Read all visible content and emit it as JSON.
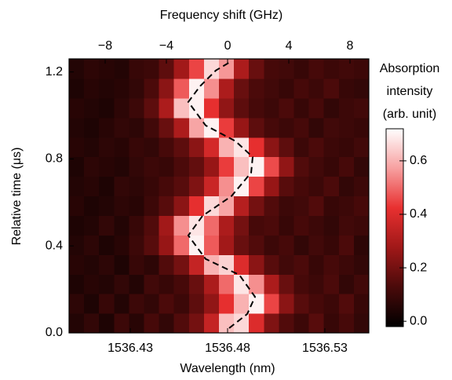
{
  "chart_data": {
    "type": "heatmap",
    "title": "Frequency shift  (GHz)",
    "x_label": "Wavelength (nm)",
    "y_label": "Relative time (μs)",
    "colorbar_label": [
      "Absorption",
      "intensity",
      "(arb. unit)"
    ],
    "xlim": [
      1536.3985,
      1536.5526
    ],
    "xticks": [
      1536.43,
      1536.48,
      1536.53
    ],
    "x2lim": [
      -10.36,
      9.23
    ],
    "x2ticks": [
      {
        "value": -8,
        "label": "−8"
      },
      {
        "value": -4,
        "label": "−4"
      },
      0,
      4,
      8
    ],
    "ylim": [
      0,
      1.26
    ],
    "yticks": [
      {
        "value": 0,
        "label": "0.0"
      },
      0.4,
      0.8,
      1.2
    ],
    "zlim": [
      -0.02,
      0.72
    ],
    "zticks": [
      {
        "value": 0,
        "label": "0.0"
      },
      0.2,
      0.4,
      0.6
    ],
    "colorscale": [
      "#000000",
      "#4a0a0a",
      "#a01818",
      "#e83030",
      "#f7a0a0",
      "#ffffff"
    ],
    "z": [
      [
        0.05,
        0.08,
        0.04,
        0.1,
        0.06,
        0.12,
        0.08,
        0.14,
        0.2,
        0.35,
        0.62,
        0.66,
        0.4,
        0.22,
        0.14,
        0.1,
        0.15,
        0.09,
        0.12,
        0.08
      ],
      [
        0.07,
        0.04,
        0.09,
        0.05,
        0.1,
        0.08,
        0.13,
        0.1,
        0.16,
        0.25,
        0.42,
        0.6,
        0.7,
        0.45,
        0.24,
        0.15,
        0.12,
        0.1,
        0.14,
        0.09
      ],
      [
        0.04,
        0.06,
        0.05,
        0.08,
        0.05,
        0.11,
        0.09,
        0.12,
        0.18,
        0.3,
        0.5,
        0.68,
        0.55,
        0.3,
        0.18,
        0.12,
        0.1,
        0.13,
        0.08,
        0.11
      ],
      [
        0.06,
        0.05,
        0.07,
        0.04,
        0.09,
        0.07,
        0.14,
        0.2,
        0.35,
        0.6,
        0.65,
        0.4,
        0.24,
        0.15,
        0.11,
        0.13,
        0.09,
        0.12,
        0.1,
        0.08
      ],
      [
        0.05,
        0.07,
        0.04,
        0.06,
        0.1,
        0.15,
        0.26,
        0.5,
        0.7,
        0.48,
        0.28,
        0.18,
        0.14,
        0.1,
        0.12,
        0.08,
        0.11,
        0.09,
        0.13,
        0.07
      ],
      [
        0.04,
        0.05,
        0.08,
        0.05,
        0.09,
        0.14,
        0.28,
        0.55,
        0.68,
        0.5,
        0.3,
        0.2,
        0.12,
        0.13,
        0.09,
        0.12,
        0.1,
        0.08,
        0.11,
        0.1
      ],
      [
        0.06,
        0.04,
        0.05,
        0.07,
        0.06,
        0.1,
        0.15,
        0.24,
        0.42,
        0.66,
        0.58,
        0.32,
        0.2,
        0.14,
        0.1,
        0.11,
        0.14,
        0.09,
        0.1,
        0.12
      ],
      [
        0.05,
        0.06,
        0.04,
        0.08,
        0.07,
        0.09,
        0.12,
        0.15,
        0.22,
        0.36,
        0.55,
        0.7,
        0.45,
        0.26,
        0.15,
        0.12,
        0.1,
        0.13,
        0.08,
        0.1
      ],
      [
        0.04,
        0.07,
        0.06,
        0.05,
        0.08,
        0.1,
        0.09,
        0.13,
        0.17,
        0.26,
        0.44,
        0.62,
        0.7,
        0.46,
        0.25,
        0.14,
        0.11,
        0.09,
        0.12,
        0.08
      ],
      [
        0.06,
        0.05,
        0.07,
        0.06,
        0.09,
        0.08,
        0.12,
        0.16,
        0.24,
        0.38,
        0.6,
        0.68,
        0.42,
        0.24,
        0.16,
        0.1,
        0.13,
        0.1,
        0.09,
        0.11
      ],
      [
        0.05,
        0.04,
        0.06,
        0.08,
        0.07,
        0.11,
        0.18,
        0.3,
        0.58,
        0.7,
        0.44,
        0.26,
        0.16,
        0.12,
        0.1,
        0.12,
        0.08,
        0.11,
        0.1,
        0.09
      ],
      [
        0.06,
        0.05,
        0.04,
        0.07,
        0.1,
        0.16,
        0.3,
        0.62,
        0.7,
        0.42,
        0.25,
        0.16,
        0.12,
        0.1,
        0.13,
        0.09,
        0.12,
        0.08,
        0.1,
        0.11
      ],
      [
        0.04,
        0.06,
        0.05,
        0.06,
        0.08,
        0.13,
        0.24,
        0.48,
        0.7,
        0.55,
        0.3,
        0.18,
        0.13,
        0.11,
        0.09,
        0.12,
        0.1,
        0.13,
        0.09,
        0.08
      ],
      [
        0.05,
        0.07,
        0.06,
        0.05,
        0.09,
        0.1,
        0.16,
        0.28,
        0.45,
        0.66,
        0.56,
        0.3,
        0.18,
        0.12,
        0.11,
        0.09,
        0.12,
        0.1,
        0.11,
        0.1
      ]
    ],
    "series": [
      {
        "color": "#000000",
        "x": [
          1536.4808,
          1536.4901,
          1536.4941,
          1536.486,
          1536.4687,
          1536.4598,
          1536.4671,
          1536.482,
          1536.4921,
          1536.4929,
          1536.484,
          1536.4687,
          1536.4598,
          1536.4659,
          1536.474,
          1536.4808
        ],
        "values": [
          0.022,
          0.087,
          0.166,
          0.267,
          0.34,
          0.448,
          0.538,
          0.629,
          0.737,
          0.809,
          0.882,
          0.954,
          1.062,
          1.135,
          1.207,
          1.243
        ]
      }
    ]
  }
}
